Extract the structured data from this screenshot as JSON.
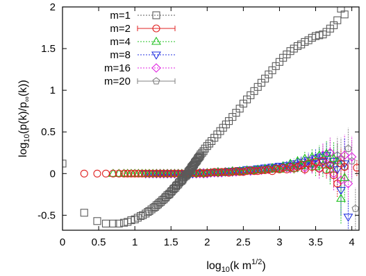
{
  "chart_data": {
    "type": "scatter",
    "xlabel": {
      "main": "log",
      "sub": "10",
      "rest": "(k m",
      "sup": "1/2",
      "end": ")"
    },
    "ylabel": {
      "main": "log",
      "sub": "10",
      "rest": "(p(k)/p",
      "sub2": "∞",
      "end": "(k))"
    },
    "xlim": [
      0,
      4.1
    ],
    "ylim": [
      -0.68,
      2.0
    ],
    "x_ticks": [
      0,
      0.5,
      1,
      1.5,
      2,
      2.5,
      3,
      3.5,
      4
    ],
    "x_tick_labels": [
      "0",
      "0.5",
      "1",
      "1.5",
      "2",
      "2.5",
      "3",
      "3.5",
      "4"
    ],
    "y_ticks": [
      -0.5,
      0,
      0.5,
      1,
      1.5,
      2
    ],
    "y_tick_labels": [
      "-0.5",
      "0",
      "0.5",
      "1",
      "1.5",
      "2"
    ],
    "grid": false,
    "legend_position": "top-left",
    "series": [
      {
        "name": "m=1",
        "color": "#5a5a5a",
        "marker": "square",
        "x": [
          0.0,
          0.3,
          0.48,
          0.6,
          0.7,
          0.78,
          0.85,
          0.9,
          0.95,
          1.0,
          1.04,
          1.08,
          1.11,
          1.15,
          1.18,
          1.2,
          1.23,
          1.26,
          1.28,
          1.3,
          1.32,
          1.34,
          1.36,
          1.38,
          1.4,
          1.42,
          1.43,
          1.45,
          1.47,
          1.48,
          1.5,
          1.51,
          1.53,
          1.54,
          1.56,
          1.57,
          1.58,
          1.6,
          1.61,
          1.62,
          1.64,
          1.65,
          1.66,
          1.67,
          1.68,
          1.7,
          1.71,
          1.72,
          1.73,
          1.74,
          1.75,
          1.76,
          1.77,
          1.78,
          1.79,
          1.8,
          1.81,
          1.82,
          1.83,
          1.84,
          1.85,
          1.86,
          1.87,
          1.88,
          1.89,
          1.9,
          1.91,
          1.93,
          1.95,
          1.97,
          2.0,
          2.03,
          2.06,
          2.1,
          2.14,
          2.18,
          2.22,
          2.26,
          2.3,
          2.35,
          2.4,
          2.45,
          2.5,
          2.55,
          2.6,
          2.65,
          2.7,
          2.75,
          2.8,
          2.85,
          2.9,
          2.95,
          3.0,
          3.05,
          3.1,
          3.15,
          3.2,
          3.25,
          3.3,
          3.35,
          3.4,
          3.45,
          3.5,
          3.55,
          3.6,
          3.65,
          3.7,
          3.75,
          3.8,
          3.85,
          3.9
        ],
        "y": [
          0.12,
          -0.47,
          -0.57,
          -0.6,
          -0.6,
          -0.6,
          -0.59,
          -0.58,
          -0.56,
          -0.55,
          -0.53,
          -0.51,
          -0.5,
          -0.48,
          -0.46,
          -0.45,
          -0.43,
          -0.41,
          -0.4,
          -0.38,
          -0.37,
          -0.35,
          -0.34,
          -0.32,
          -0.31,
          -0.29,
          -0.28,
          -0.26,
          -0.25,
          -0.24,
          -0.22,
          -0.21,
          -0.19,
          -0.18,
          -0.17,
          -0.15,
          -0.14,
          -0.13,
          -0.11,
          -0.1,
          -0.09,
          -0.08,
          -0.07,
          -0.05,
          -0.04,
          -0.03,
          -0.02,
          -0.01,
          0.0,
          0.02,
          0.03,
          0.04,
          0.05,
          0.07,
          0.08,
          0.09,
          0.1,
          0.11,
          0.13,
          0.14,
          0.15,
          0.16,
          0.18,
          0.19,
          0.2,
          0.21,
          0.23,
          0.25,
          0.27,
          0.3,
          0.33,
          0.36,
          0.39,
          0.43,
          0.47,
          0.51,
          0.55,
          0.59,
          0.63,
          0.68,
          0.73,
          0.78,
          0.84,
          0.89,
          0.94,
          0.99,
          1.04,
          1.09,
          1.14,
          1.19,
          1.24,
          1.29,
          1.34,
          1.39,
          1.43,
          1.47,
          1.5,
          1.53,
          1.55,
          1.58,
          1.6,
          1.63,
          1.65,
          1.66,
          1.67,
          1.7,
          1.74,
          1.78,
          1.84,
          1.98,
          1.91
        ]
      },
      {
        "name": "m=2",
        "color": "#e02020",
        "marker": "circle",
        "x": [
          0.3,
          0.48,
          0.6,
          0.7,
          0.78,
          0.85,
          0.9,
          0.95,
          1.0,
          1.05,
          1.1,
          1.15,
          1.2,
          1.25,
          1.3,
          1.35,
          1.4,
          1.45,
          1.5,
          1.55,
          1.6,
          1.65,
          1.7,
          1.75,
          1.8,
          1.85,
          1.9,
          1.95,
          2.0,
          2.05,
          2.1,
          2.15,
          2.2,
          2.25,
          2.3,
          2.35,
          2.4,
          2.45,
          2.5,
          2.55,
          2.6,
          2.65,
          2.7,
          2.75,
          2.8,
          2.85,
          2.9,
          2.95,
          3.0,
          3.05,
          3.1,
          3.15,
          3.2,
          3.25,
          3.3,
          3.35,
          3.4,
          3.45,
          3.5,
          3.55,
          3.6,
          3.65,
          3.7,
          3.75,
          3.8,
          3.85,
          3.9,
          4.07
        ],
        "y": [
          0.0,
          0.0,
          0.0,
          0.0,
          0.0,
          0.0,
          0.0,
          0.0,
          0.0,
          0.0,
          0.0,
          0.0,
          0.0,
          0.0,
          0.0,
          0.0,
          0.0,
          0.0,
          0.0,
          0.0,
          0.0,
          0.0,
          0.0,
          0.0,
          0.01,
          0.0,
          0.01,
          0.0,
          0.01,
          0.01,
          0.02,
          0.01,
          0.02,
          0.02,
          0.01,
          0.02,
          0.03,
          0.02,
          0.02,
          0.03,
          0.04,
          0.03,
          0.03,
          0.04,
          0.04,
          0.05,
          0.03,
          0.06,
          0.05,
          0.07,
          0.05,
          0.08,
          0.06,
          0.08,
          0.1,
          0.05,
          0.12,
          0.08,
          0.14,
          0.06,
          0.15,
          0.04,
          0.1,
          -0.02,
          -0.12,
          0.12,
          0.08,
          0.07
        ],
        "err": [
          0,
          0,
          0,
          0,
          0,
          0,
          0,
          0,
          0,
          0,
          0,
          0,
          0,
          0,
          0,
          0,
          0,
          0,
          0,
          0,
          0,
          0,
          0,
          0,
          0,
          0,
          0,
          0,
          0,
          0,
          0,
          0,
          0.005,
          0.005,
          0.005,
          0.01,
          0.01,
          0.01,
          0.01,
          0.01,
          0.015,
          0.015,
          0.015,
          0.02,
          0.02,
          0.02,
          0.02,
          0.025,
          0.025,
          0.03,
          0.03,
          0.035,
          0.035,
          0.04,
          0.04,
          0.05,
          0.05,
          0.06,
          0.07,
          0.08,
          0.09,
          0.1,
          0.12,
          0.14,
          0.16,
          0.18,
          0.2,
          0.1
        ]
      },
      {
        "name": "m=4",
        "color": "#20c020",
        "marker": "triangle-up",
        "x": [
          0.7,
          0.78,
          0.85,
          0.9,
          0.95,
          1.0,
          1.05,
          1.1,
          1.15,
          1.2,
          1.25,
          1.3,
          1.35,
          1.4,
          1.45,
          1.5,
          1.55,
          1.6,
          1.65,
          1.7,
          1.75,
          1.8,
          1.85,
          1.9,
          1.95,
          2.0,
          2.05,
          2.1,
          2.15,
          2.2,
          2.25,
          2.3,
          2.35,
          2.4,
          2.45,
          2.5,
          2.55,
          2.6,
          2.65,
          2.7,
          2.75,
          2.8,
          2.85,
          2.9,
          2.95,
          3.0,
          3.05,
          3.1,
          3.15,
          3.2,
          3.25,
          3.3,
          3.35,
          3.4,
          3.45,
          3.5,
          3.55,
          3.6,
          3.65,
          3.7,
          3.75,
          3.8,
          3.85,
          3.9
        ],
        "y": [
          0.0,
          0.0,
          0.0,
          0.0,
          0.0,
          0.0,
          0.0,
          0.0,
          0.0,
          0.0,
          0.0,
          0.0,
          0.0,
          0.0,
          0.0,
          0.0,
          0.0,
          0.0,
          0.0,
          0.0,
          0.0,
          0.0,
          0.0,
          0.01,
          0.0,
          0.01,
          0.01,
          0.01,
          0.02,
          0.01,
          0.02,
          0.02,
          0.03,
          0.02,
          0.03,
          0.03,
          0.04,
          0.03,
          0.04,
          0.05,
          0.04,
          0.06,
          0.05,
          0.07,
          0.06,
          0.05,
          0.09,
          0.07,
          0.12,
          0.06,
          0.15,
          0.09,
          0.18,
          0.12,
          0.2,
          0.08,
          0.22,
          0.1,
          0.24,
          0.05,
          0.18,
          0.15,
          -0.3,
          -0.05
        ],
        "err": [
          0,
          0,
          0,
          0,
          0,
          0,
          0,
          0,
          0,
          0,
          0,
          0,
          0,
          0,
          0,
          0,
          0,
          0,
          0,
          0,
          0,
          0,
          0,
          0,
          0.005,
          0.005,
          0.005,
          0.005,
          0.01,
          0.01,
          0.01,
          0.01,
          0.01,
          0.015,
          0.015,
          0.015,
          0.02,
          0.02,
          0.02,
          0.025,
          0.025,
          0.03,
          0.03,
          0.035,
          0.035,
          0.04,
          0.045,
          0.05,
          0.05,
          0.06,
          0.06,
          0.07,
          0.08,
          0.09,
          0.1,
          0.11,
          0.12,
          0.14,
          0.16,
          0.18,
          0.2,
          0.22,
          0.3,
          0.3
        ]
      },
      {
        "name": "m=8",
        "color": "#2030e0",
        "marker": "triangle-down",
        "x": [
          1.15,
          1.2,
          1.25,
          1.3,
          1.35,
          1.4,
          1.45,
          1.5,
          1.55,
          1.6,
          1.65,
          1.7,
          1.75,
          1.8,
          1.85,
          1.9,
          1.95,
          2.0,
          2.05,
          2.1,
          2.15,
          2.2,
          2.25,
          2.3,
          2.35,
          2.4,
          2.45,
          2.5,
          2.55,
          2.6,
          2.65,
          2.7,
          2.75,
          2.8,
          2.85,
          2.9,
          2.95,
          3.0,
          3.05,
          3.1,
          3.15,
          3.2,
          3.25,
          3.3,
          3.35,
          3.4,
          3.45,
          3.5,
          3.55,
          3.6,
          3.65,
          3.7,
          3.75,
          3.8,
          3.85,
          3.9,
          3.95
        ],
        "y": [
          0.0,
          0.0,
          0.0,
          0.0,
          0.0,
          0.0,
          0.0,
          0.0,
          0.0,
          0.0,
          0.0,
          0.0,
          0.0,
          0.0,
          0.0,
          0.01,
          0.0,
          0.01,
          0.01,
          0.02,
          0.01,
          0.02,
          0.02,
          0.03,
          0.02,
          0.03,
          0.04,
          0.03,
          0.05,
          0.04,
          0.05,
          0.06,
          0.05,
          0.07,
          0.06,
          0.08,
          0.07,
          0.09,
          0.08,
          0.1,
          0.09,
          0.12,
          0.1,
          0.14,
          0.11,
          0.16,
          0.12,
          0.18,
          0.2,
          0.14,
          0.22,
          0.1,
          0.15,
          0.05,
          -0.2,
          0.12,
          -0.52
        ],
        "err": [
          0,
          0,
          0,
          0,
          0,
          0,
          0,
          0,
          0,
          0,
          0,
          0,
          0,
          0,
          0,
          0,
          0,
          0.005,
          0.005,
          0.005,
          0.01,
          0.01,
          0.01,
          0.01,
          0.015,
          0.015,
          0.015,
          0.02,
          0.02,
          0.02,
          0.025,
          0.025,
          0.03,
          0.03,
          0.035,
          0.035,
          0.04,
          0.04,
          0.045,
          0.05,
          0.055,
          0.06,
          0.065,
          0.07,
          0.08,
          0.09,
          0.1,
          0.11,
          0.12,
          0.14,
          0.16,
          0.18,
          0.2,
          0.22,
          0.3,
          0.3,
          0.2
        ]
      },
      {
        "name": "m=16",
        "color": "#e020e0",
        "marker": "diamond",
        "x": [
          1.3,
          1.35,
          1.4,
          1.45,
          1.5,
          1.55,
          1.6,
          1.65,
          1.7,
          1.75,
          1.8,
          1.85,
          1.9,
          1.95,
          2.0,
          2.05,
          2.1,
          2.15,
          2.2,
          2.25,
          2.3,
          2.35,
          2.4,
          2.45,
          2.5,
          2.55,
          2.6,
          2.65,
          2.7,
          2.75,
          2.8,
          2.85,
          2.9,
          2.95,
          3.0,
          3.05,
          3.1,
          3.15,
          3.2,
          3.25,
          3.3,
          3.35,
          3.4,
          3.45,
          3.5,
          3.55,
          3.6,
          3.65,
          3.7,
          3.75,
          3.8,
          3.85,
          3.9,
          3.95,
          4.0
        ],
        "y": [
          0.0,
          0.0,
          0.0,
          0.0,
          0.0,
          0.0,
          0.0,
          0.0,
          0.0,
          0.0,
          0.0,
          0.0,
          0.0,
          0.01,
          0.0,
          0.01,
          0.01,
          0.02,
          0.01,
          0.02,
          0.02,
          0.03,
          0.02,
          0.03,
          0.03,
          0.04,
          0.03,
          0.04,
          0.05,
          0.04,
          0.06,
          0.05,
          0.06,
          0.07,
          0.06,
          0.08,
          0.07,
          0.06,
          0.1,
          0.08,
          0.12,
          0.07,
          0.15,
          0.1,
          0.18,
          0.06,
          0.22,
          0.12,
          0.25,
          0.0,
          0.16,
          -0.08,
          0.22,
          -0.12,
          0.2
        ],
        "err": [
          0,
          0,
          0,
          0,
          0,
          0,
          0,
          0,
          0,
          0,
          0,
          0,
          0,
          0,
          0.005,
          0.005,
          0.005,
          0.01,
          0.01,
          0.01,
          0.01,
          0.015,
          0.015,
          0.015,
          0.02,
          0.02,
          0.02,
          0.025,
          0.025,
          0.03,
          0.03,
          0.035,
          0.035,
          0.04,
          0.04,
          0.045,
          0.05,
          0.055,
          0.06,
          0.065,
          0.07,
          0.08,
          0.09,
          0.1,
          0.11,
          0.12,
          0.14,
          0.16,
          0.18,
          0.2,
          0.22,
          0.25,
          0.25,
          0.25,
          0.25
        ]
      },
      {
        "name": "m=20",
        "color": "#808080",
        "marker": "pentagon",
        "x": [
          1.35,
          1.4,
          1.45,
          1.5,
          1.55,
          1.6,
          1.65,
          1.7,
          1.75,
          1.8,
          1.85,
          1.9,
          1.95,
          2.0,
          2.05,
          2.1,
          2.15,
          2.2,
          2.25,
          2.3,
          2.35,
          2.4,
          2.45,
          2.5,
          2.55,
          2.6,
          2.65,
          2.7,
          2.75,
          2.8,
          2.85,
          2.9,
          2.95,
          3.0,
          3.05,
          3.1,
          3.15,
          3.2,
          3.25,
          3.3,
          3.35,
          3.4,
          3.45,
          3.5,
          3.55,
          3.6,
          3.65,
          3.7,
          3.75,
          3.8,
          3.85,
          3.9,
          3.95,
          4.0,
          4.05
        ],
        "y": [
          0.0,
          0.0,
          0.0,
          0.0,
          0.0,
          0.0,
          0.0,
          0.0,
          0.0,
          0.0,
          0.0,
          0.0,
          0.01,
          0.0,
          0.01,
          0.01,
          0.01,
          0.02,
          0.01,
          0.02,
          0.02,
          0.03,
          0.02,
          0.03,
          0.03,
          0.04,
          0.04,
          0.05,
          0.04,
          0.05,
          0.06,
          0.05,
          0.07,
          0.06,
          0.08,
          0.07,
          0.09,
          0.1,
          0.08,
          0.12,
          0.09,
          0.15,
          0.11,
          0.18,
          0.1,
          0.2,
          0.15,
          0.25,
          0.1,
          0.22,
          0.18,
          0.08,
          0.3,
          0.15,
          -0.42
        ],
        "err": [
          0,
          0,
          0,
          0,
          0,
          0,
          0,
          0,
          0,
          0,
          0,
          0,
          0,
          0.005,
          0.005,
          0.005,
          0.01,
          0.01,
          0.01,
          0.01,
          0.015,
          0.015,
          0.015,
          0.02,
          0.02,
          0.02,
          0.025,
          0.025,
          0.03,
          0.03,
          0.035,
          0.035,
          0.04,
          0.04,
          0.045,
          0.05,
          0.055,
          0.06,
          0.065,
          0.07,
          0.08,
          0.09,
          0.1,
          0.11,
          0.12,
          0.14,
          0.16,
          0.18,
          0.2,
          0.22,
          0.25,
          0.25,
          0.25,
          0.25,
          0.25
        ]
      }
    ]
  }
}
